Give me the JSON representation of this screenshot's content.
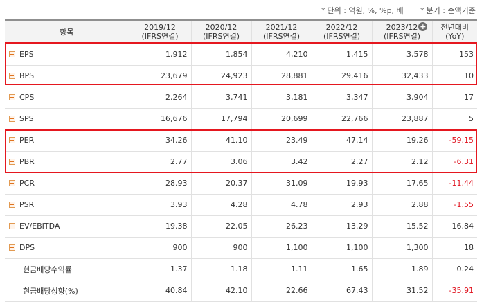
{
  "notes": {
    "unit": "단위 : 억원, %, %p, 배",
    "period": "분기 : 순액기준",
    "star": "*"
  },
  "header": {
    "item": "항목",
    "columns": [
      [
        "2019/12",
        "(IFRS연결)"
      ],
      [
        "2020/12",
        "(IFRS연결)"
      ],
      [
        "2021/12",
        "(IFRS연결)"
      ],
      [
        "2022/12",
        "(IFRS연결)"
      ],
      [
        "2023/12",
        "(IFRS연결)"
      ]
    ],
    "yoy": [
      "전년대비",
      "(YoY)"
    ],
    "expand_symbol": "+"
  },
  "rows": [
    {
      "label": "EPS",
      "icon": true,
      "values": [
        "1,912",
        "1,854",
        "4,210",
        "1,415",
        "3,578"
      ],
      "yoy": "153",
      "neg": false
    },
    {
      "label": "BPS",
      "icon": true,
      "values": [
        "23,679",
        "24,923",
        "28,881",
        "29,416",
        "32,433"
      ],
      "yoy": "10",
      "neg": false
    },
    {
      "label": "CPS",
      "icon": true,
      "values": [
        "2,264",
        "3,741",
        "3,181",
        "3,347",
        "3,904"
      ],
      "yoy": "17",
      "neg": false
    },
    {
      "label": "SPS",
      "icon": true,
      "values": [
        "16,676",
        "17,794",
        "20,699",
        "22,766",
        "23,887"
      ],
      "yoy": "5",
      "neg": false
    },
    {
      "label": "PER",
      "icon": true,
      "values": [
        "34.26",
        "41.10",
        "23.49",
        "47.14",
        "19.26"
      ],
      "yoy": "-59.15",
      "neg": true
    },
    {
      "label": "PBR",
      "icon": true,
      "values": [
        "2.77",
        "3.06",
        "3.42",
        "2.27",
        "2.12"
      ],
      "yoy": "-6.31",
      "neg": true
    },
    {
      "label": "PCR",
      "icon": true,
      "values": [
        "28.93",
        "20.37",
        "31.09",
        "19.93",
        "17.65"
      ],
      "yoy": "-11.44",
      "neg": true
    },
    {
      "label": "PSR",
      "icon": true,
      "values": [
        "3.93",
        "4.28",
        "4.78",
        "2.93",
        "2.88"
      ],
      "yoy": "-1.55",
      "neg": true
    },
    {
      "label": "EV/EBITDA",
      "icon": true,
      "values": [
        "19.38",
        "22.05",
        "26.23",
        "13.29",
        "15.52"
      ],
      "yoy": "16.84",
      "neg": false
    },
    {
      "label": "DPS",
      "icon": true,
      "values": [
        "900",
        "900",
        "1,100",
        "1,100",
        "1,300"
      ],
      "yoy": "18",
      "neg": false
    },
    {
      "label": "현금배당수익률",
      "icon": false,
      "values": [
        "1.37",
        "1.18",
        "1.11",
        "1.65",
        "1.89"
      ],
      "yoy": "0.24",
      "neg": false
    },
    {
      "label": "현금배당성향(%)",
      "icon": false,
      "values": [
        "40.84",
        "42.10",
        "22.66",
        "67.43",
        "31.52"
      ],
      "yoy": "-35.91",
      "neg": true
    }
  ],
  "colors": {
    "negative": "#e0131f",
    "highlight_box": "#e5171f",
    "plus_icon": "#e07420"
  }
}
